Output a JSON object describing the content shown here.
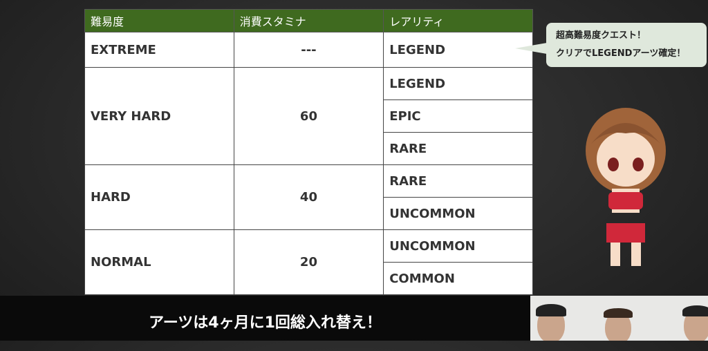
{
  "table": {
    "headers": [
      "難易度",
      "消費スタミナ",
      "レアリティ"
    ],
    "rows": [
      {
        "difficulty": "EXTREME",
        "stamina": "---",
        "rarities": [
          "LEGEND"
        ]
      },
      {
        "difficulty": "VERY HARD",
        "stamina": "60",
        "rarities": [
          "LEGEND",
          "EPIC",
          "RARE"
        ]
      },
      {
        "difficulty": "HARD",
        "stamina": "40",
        "rarities": [
          "RARE",
          "UNCOMMON"
        ]
      },
      {
        "difficulty": "NORMAL",
        "stamina": "20",
        "rarities": [
          "UNCOMMON",
          "COMMON"
        ]
      }
    ],
    "header_color": "#3f6a1f"
  },
  "bubble": {
    "line1": "超高難易度クエスト！",
    "line2": "クリアでLEGENDアーツ確定！"
  },
  "caption": "アーツは4ヶ月に1回総入れ替え！"
}
